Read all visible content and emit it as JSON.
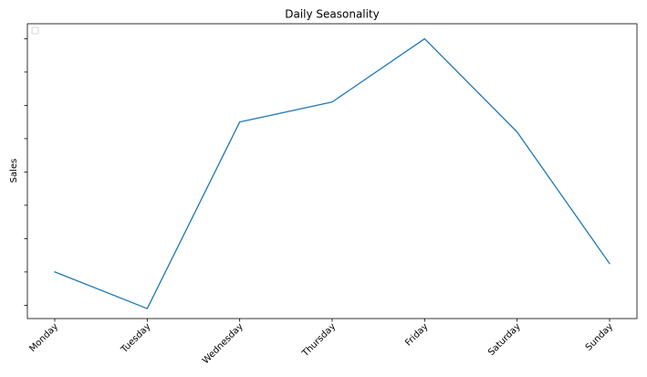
{
  "chart_data": {
    "type": "line",
    "title": "Daily Seasonality",
    "ylabel": "Sales",
    "xlabel": "",
    "categories": [
      "Monday",
      "Tuesday",
      "Wednesday",
      "Thursday",
      "Friday",
      "Saturday",
      "Sunday"
    ],
    "series": [
      {
        "values": [
          2.0,
          0.9,
          6.5,
          7.1,
          9.0,
          6.2,
          2.25
        ],
        "color": "#1f77b4"
      }
    ],
    "ylim": [
      0.6,
      9.45
    ],
    "yticks": [
      1,
      2,
      3,
      4,
      5,
      6,
      7,
      8,
      9
    ],
    "ytick_labels_visible": false,
    "grid": false,
    "legend": {
      "placement": "top-left",
      "entries": []
    }
  }
}
